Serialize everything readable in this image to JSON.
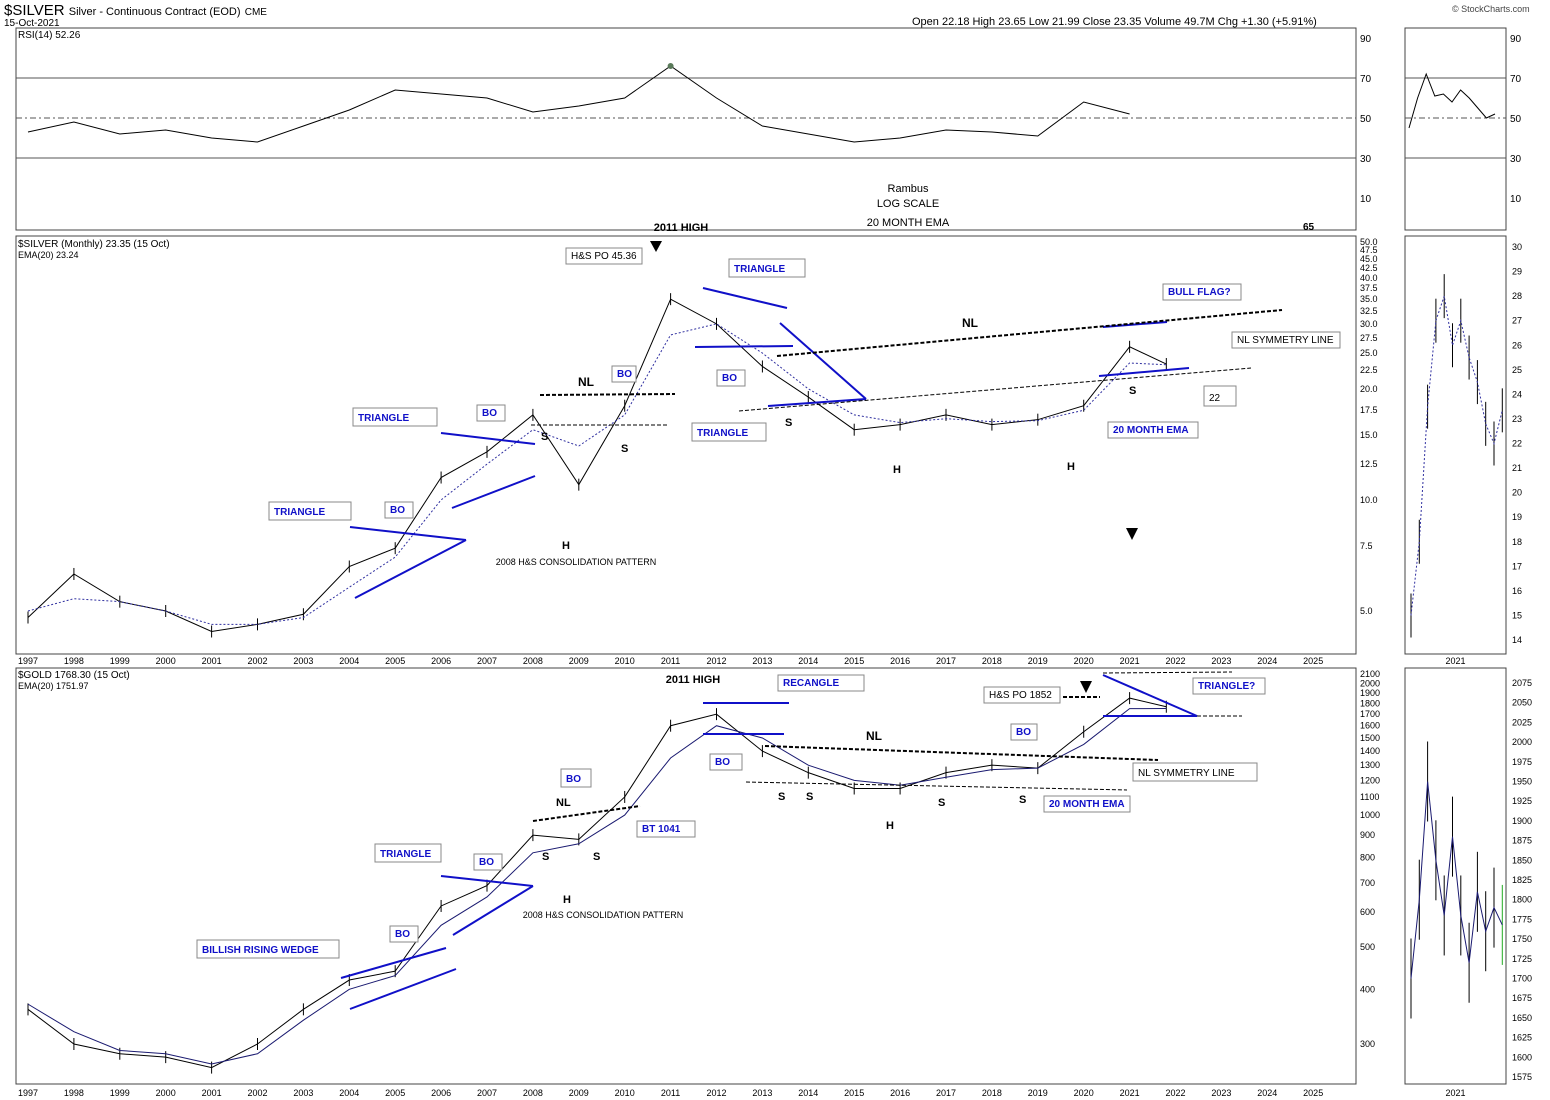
{
  "header": {
    "symbol": "$SILVER",
    "description": "Silver - Continuous Contract (EOD)",
    "exchange": "CME",
    "date": "15-Oct-2021",
    "quote": "Open 22.18  High 23.65  Low 21.99  Close 23.35  Volume 49.7M  Chg +1.30 (+5.91%)",
    "watermark": "© StockCharts.com"
  },
  "colors": {
    "annotation_blue": "#1010c8",
    "bull_green": "#22aa22",
    "rsi_fill": "#5a7a5a"
  },
  "chart_data": [
    {
      "type": "line",
      "name": "rsi-panel",
      "legend": "RSI(14) 52.26",
      "ylim": [
        0,
        100
      ],
      "y_ticks": [
        90,
        70,
        50,
        30,
        10
      ],
      "reference_lines": [
        70,
        50,
        30
      ],
      "x": [
        "1997",
        "1998",
        "1999",
        "2000",
        "2001",
        "2002",
        "2003",
        "2004",
        "2005",
        "2006",
        "2007",
        "2008",
        "2009",
        "2010",
        "2011",
        "2012",
        "2013",
        "2014",
        "2015",
        "2016",
        "2017",
        "2018",
        "2019",
        "2020",
        "2021"
      ],
      "values": [
        43,
        48,
        42,
        44,
        40,
        38,
        46,
        54,
        64,
        62,
        60,
        53,
        56,
        60,
        76,
        60,
        46,
        42,
        38,
        40,
        44,
        43,
        41,
        58,
        52
      ],
      "annotations": [
        "Rambus",
        "LOG SCALE",
        "20 MONTH EMA",
        "65"
      ],
      "inset_values": [
        45,
        60,
        72,
        61,
        62,
        58,
        64,
        60,
        55,
        50,
        52
      ]
    },
    {
      "type": "line",
      "name": "silver-monthly",
      "legend": "$SILVER (Monthly) 23.35 (15 Oct)",
      "ema_legend": "EMA(20) 23.24",
      "log_scale": true,
      "y_ticks": [
        50.0,
        47.5,
        45.0,
        42.5,
        40.0,
        37.5,
        35.0,
        32.5,
        30.0,
        27.5,
        25.0,
        22.5,
        20.0,
        17.5,
        15.0,
        12.5,
        10.0,
        7.5,
        5.0
      ],
      "x_labels": [
        "1997",
        "1998",
        "1999",
        "2000",
        "2001",
        "2002",
        "2003",
        "2004",
        "2005",
        "2006",
        "2007",
        "2008",
        "2009",
        "2010",
        "2011",
        "2012",
        "2013",
        "2014",
        "2015",
        "2016",
        "2017",
        "2018",
        "2019",
        "2020",
        "2021",
        "2022",
        "2023",
        "2024",
        "2025"
      ],
      "x": [
        1997,
        1998,
        1999,
        2000,
        2001,
        2002,
        2003,
        2004,
        2005,
        2006,
        2007,
        2008,
        2009,
        2010,
        2011,
        2012,
        2013,
        2014,
        2015,
        2016,
        2017,
        2018,
        2019,
        2020,
        2021,
        2021.8
      ],
      "values": [
        4.8,
        6.3,
        5.3,
        5.0,
        4.4,
        4.6,
        4.9,
        6.6,
        7.4,
        11.5,
        13.5,
        17.0,
        11.0,
        18.0,
        35.0,
        30.0,
        23.0,
        19.0,
        15.5,
        16.0,
        17.0,
        16.0,
        16.5,
        18.0,
        26.0,
        23.35
      ],
      "ema_values": [
        5.0,
        5.4,
        5.3,
        5.0,
        4.6,
        4.6,
        4.8,
        5.8,
        7.0,
        10.0,
        12.5,
        15.5,
        14.0,
        17.0,
        28.0,
        30.0,
        25.0,
        20.0,
        17.0,
        16.2,
        16.6,
        16.3,
        16.4,
        17.5,
        23.5,
        23.24
      ],
      "annotations": [
        "2011 HIGH",
        "H&S PO 45.36",
        "TRIANGLE",
        "TRIANGLE",
        "TRIANGLE",
        "TRIANGLE",
        "BO",
        "BO",
        "BO",
        "BO",
        "BULL FLAG?",
        "NL",
        "NL",
        "NL SYMMETRY LINE",
        "S",
        "S",
        "S",
        "S",
        "H",
        "H",
        "H",
        "S",
        "22",
        "20 MONTH EMA",
        "2008 H&S CONSOLIDATION PATTERN"
      ],
      "inset_ticks": [
        30,
        29,
        28,
        27,
        26,
        25,
        24,
        23,
        22,
        21,
        20,
        19,
        18,
        17,
        16,
        15,
        14
      ],
      "inset_values": [
        15.0,
        18.0,
        23.5,
        27.0,
        28.0,
        26.0,
        27.0,
        25.5,
        24.5,
        22.8,
        22.0,
        23.35
      ],
      "inset_x_label": "2021"
    },
    {
      "type": "line",
      "name": "gold-monthly",
      "legend": "$GOLD 1768.30 (15 Oct)",
      "ema_legend": "EMA(20) 1751.97",
      "log_scale": true,
      "y_ticks": [
        2100,
        2000,
        1900,
        1800,
        1700,
        1600,
        1500,
        1400,
        1300,
        1200,
        1100,
        1000,
        900,
        800,
        700,
        600,
        500,
        400,
        300
      ],
      "x_labels": [
        "1997",
        "1998",
        "1999",
        "2000",
        "2001",
        "2002",
        "2003",
        "2004",
        "2005",
        "2006",
        "2007",
        "2008",
        "2009",
        "2010",
        "2011",
        "2012",
        "2013",
        "2014",
        "2015",
        "2016",
        "2017",
        "2018",
        "2019",
        "2020",
        "2021",
        "2022",
        "2023",
        "2024",
        "2025"
      ],
      "x": [
        1997,
        1998,
        1999,
        2000,
        2001,
        2002,
        2003,
        2004,
        2005,
        2006,
        2007,
        2008,
        2009,
        2010,
        2011,
        2012,
        2013,
        2014,
        2015,
        2016,
        2017,
        2018,
        2019,
        2020,
        2021,
        2021.8
      ],
      "values": [
        360,
        300,
        285,
        280,
        265,
        300,
        360,
        420,
        440,
        620,
        690,
        900,
        880,
        1100,
        1600,
        1700,
        1400,
        1250,
        1150,
        1150,
        1250,
        1300,
        1280,
        1550,
        1850,
        1768
      ],
      "ema_values": [
        370,
        320,
        290,
        285,
        270,
        285,
        340,
        400,
        430,
        560,
        650,
        820,
        860,
        1000,
        1350,
        1600,
        1500,
        1300,
        1200,
        1170,
        1220,
        1270,
        1280,
        1450,
        1750,
        1752
      ],
      "annotations": [
        "2011 HIGH",
        "RECANGLE",
        "H&S PO 1852",
        "TRIANGLE?",
        "TRIANGLE",
        "BILLISH RISING WEDGE",
        "BO",
        "BO",
        "BO",
        "BO",
        "NL",
        "NL",
        "NL SYMMETRY LINE",
        "BT 1041",
        "20 MONTH EMA",
        "S",
        "S",
        "S",
        "S",
        "S",
        "H",
        "H",
        "2008 H&S CONSOLIDATION PATTERN"
      ],
      "inset_ticks": [
        2075,
        2050,
        2025,
        2000,
        1975,
        1950,
        1925,
        1900,
        1875,
        1850,
        1825,
        1800,
        1775,
        1750,
        1725,
        1700,
        1675,
        1650,
        1625,
        1600,
        1575
      ],
      "inset_values": [
        1700,
        1800,
        1950,
        1850,
        1780,
        1880,
        1780,
        1720,
        1810,
        1760,
        1790,
        1768
      ],
      "inset_x_label": "2021"
    }
  ]
}
